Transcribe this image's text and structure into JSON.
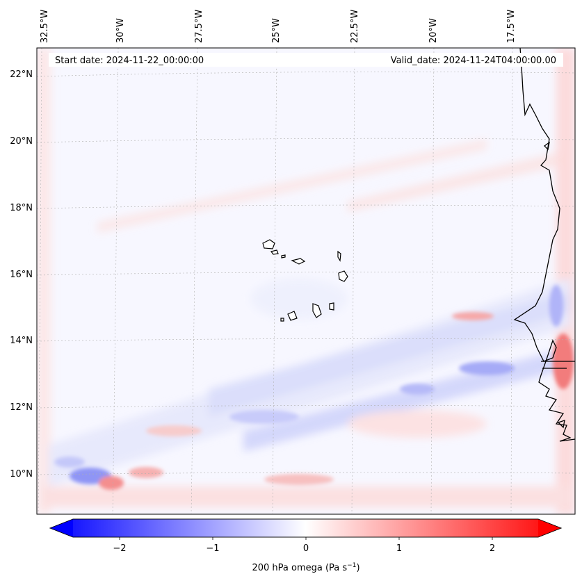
{
  "header": {
    "start_date": "Start date: 2024-11-22_00:00:00",
    "valid_date": "Valid_date: 2024-11-24T04:00:00.00"
  },
  "longitude_labels": [
    "32.5°W",
    "30°W",
    "27.5°W",
    "25°W",
    "22.5°W",
    "20°W",
    "17.5°W"
  ],
  "latitude_labels": [
    "22°N",
    "20°N",
    "18°N",
    "16°N",
    "14°N",
    "12°N",
    "10°N"
  ],
  "colorbar": {
    "ticks": [
      "−2",
      "−1",
      "0",
      "1",
      "2"
    ],
    "tick_values": [
      -2,
      -1,
      0,
      1,
      2
    ],
    "range": [
      -2.5,
      2.5
    ],
    "label_main": "200 hPa omega (Pa s",
    "label_sup": "−1",
    "label_end": ")",
    "color_negative": "#0000ff",
    "color_zero": "#ffffff",
    "color_positive": "#ff0000"
  },
  "map": {
    "coastline_color": "#000000",
    "gridline_color": "#b0b0b0"
  }
}
